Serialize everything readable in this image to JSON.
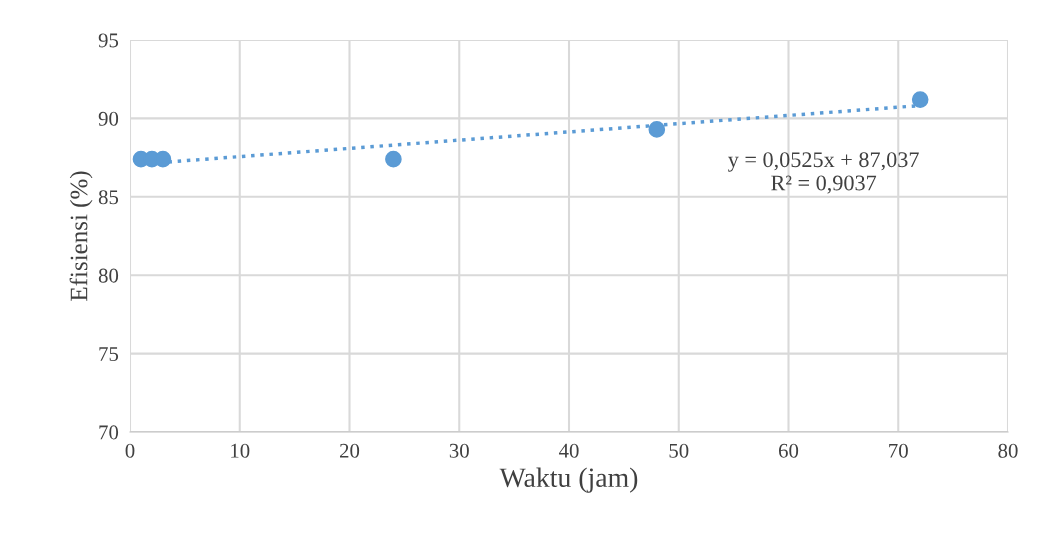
{
  "chart_data": {
    "type": "scatter",
    "xlabel": "Waktu (jam)",
    "ylabel": "Efisiensi (%)",
    "xlim": [
      0,
      80
    ],
    "xticks": [
      0,
      10,
      20,
      30,
      40,
      50,
      60,
      70,
      80
    ],
    "ylim": [
      70,
      95
    ],
    "yticks": [
      70,
      75,
      80,
      85,
      90,
      95
    ],
    "grid": true,
    "series": [
      {
        "marker": "circle",
        "color": "#5b9bd5",
        "x": [
          1,
          2,
          3,
          24,
          48,
          72
        ],
        "values": [
          87.4,
          87.4,
          87.4,
          87.4,
          89.3,
          91.2
        ]
      },
      {
        "type": "line",
        "color": "#5b9bd5",
        "line_style": "dotted",
        "x": [
          1,
          72
        ],
        "values": [
          87.09,
          90.82
        ]
      }
    ],
    "annotations": [
      "y = 0,0525x + 87,037\nR² = 0,9037"
    ]
  }
}
